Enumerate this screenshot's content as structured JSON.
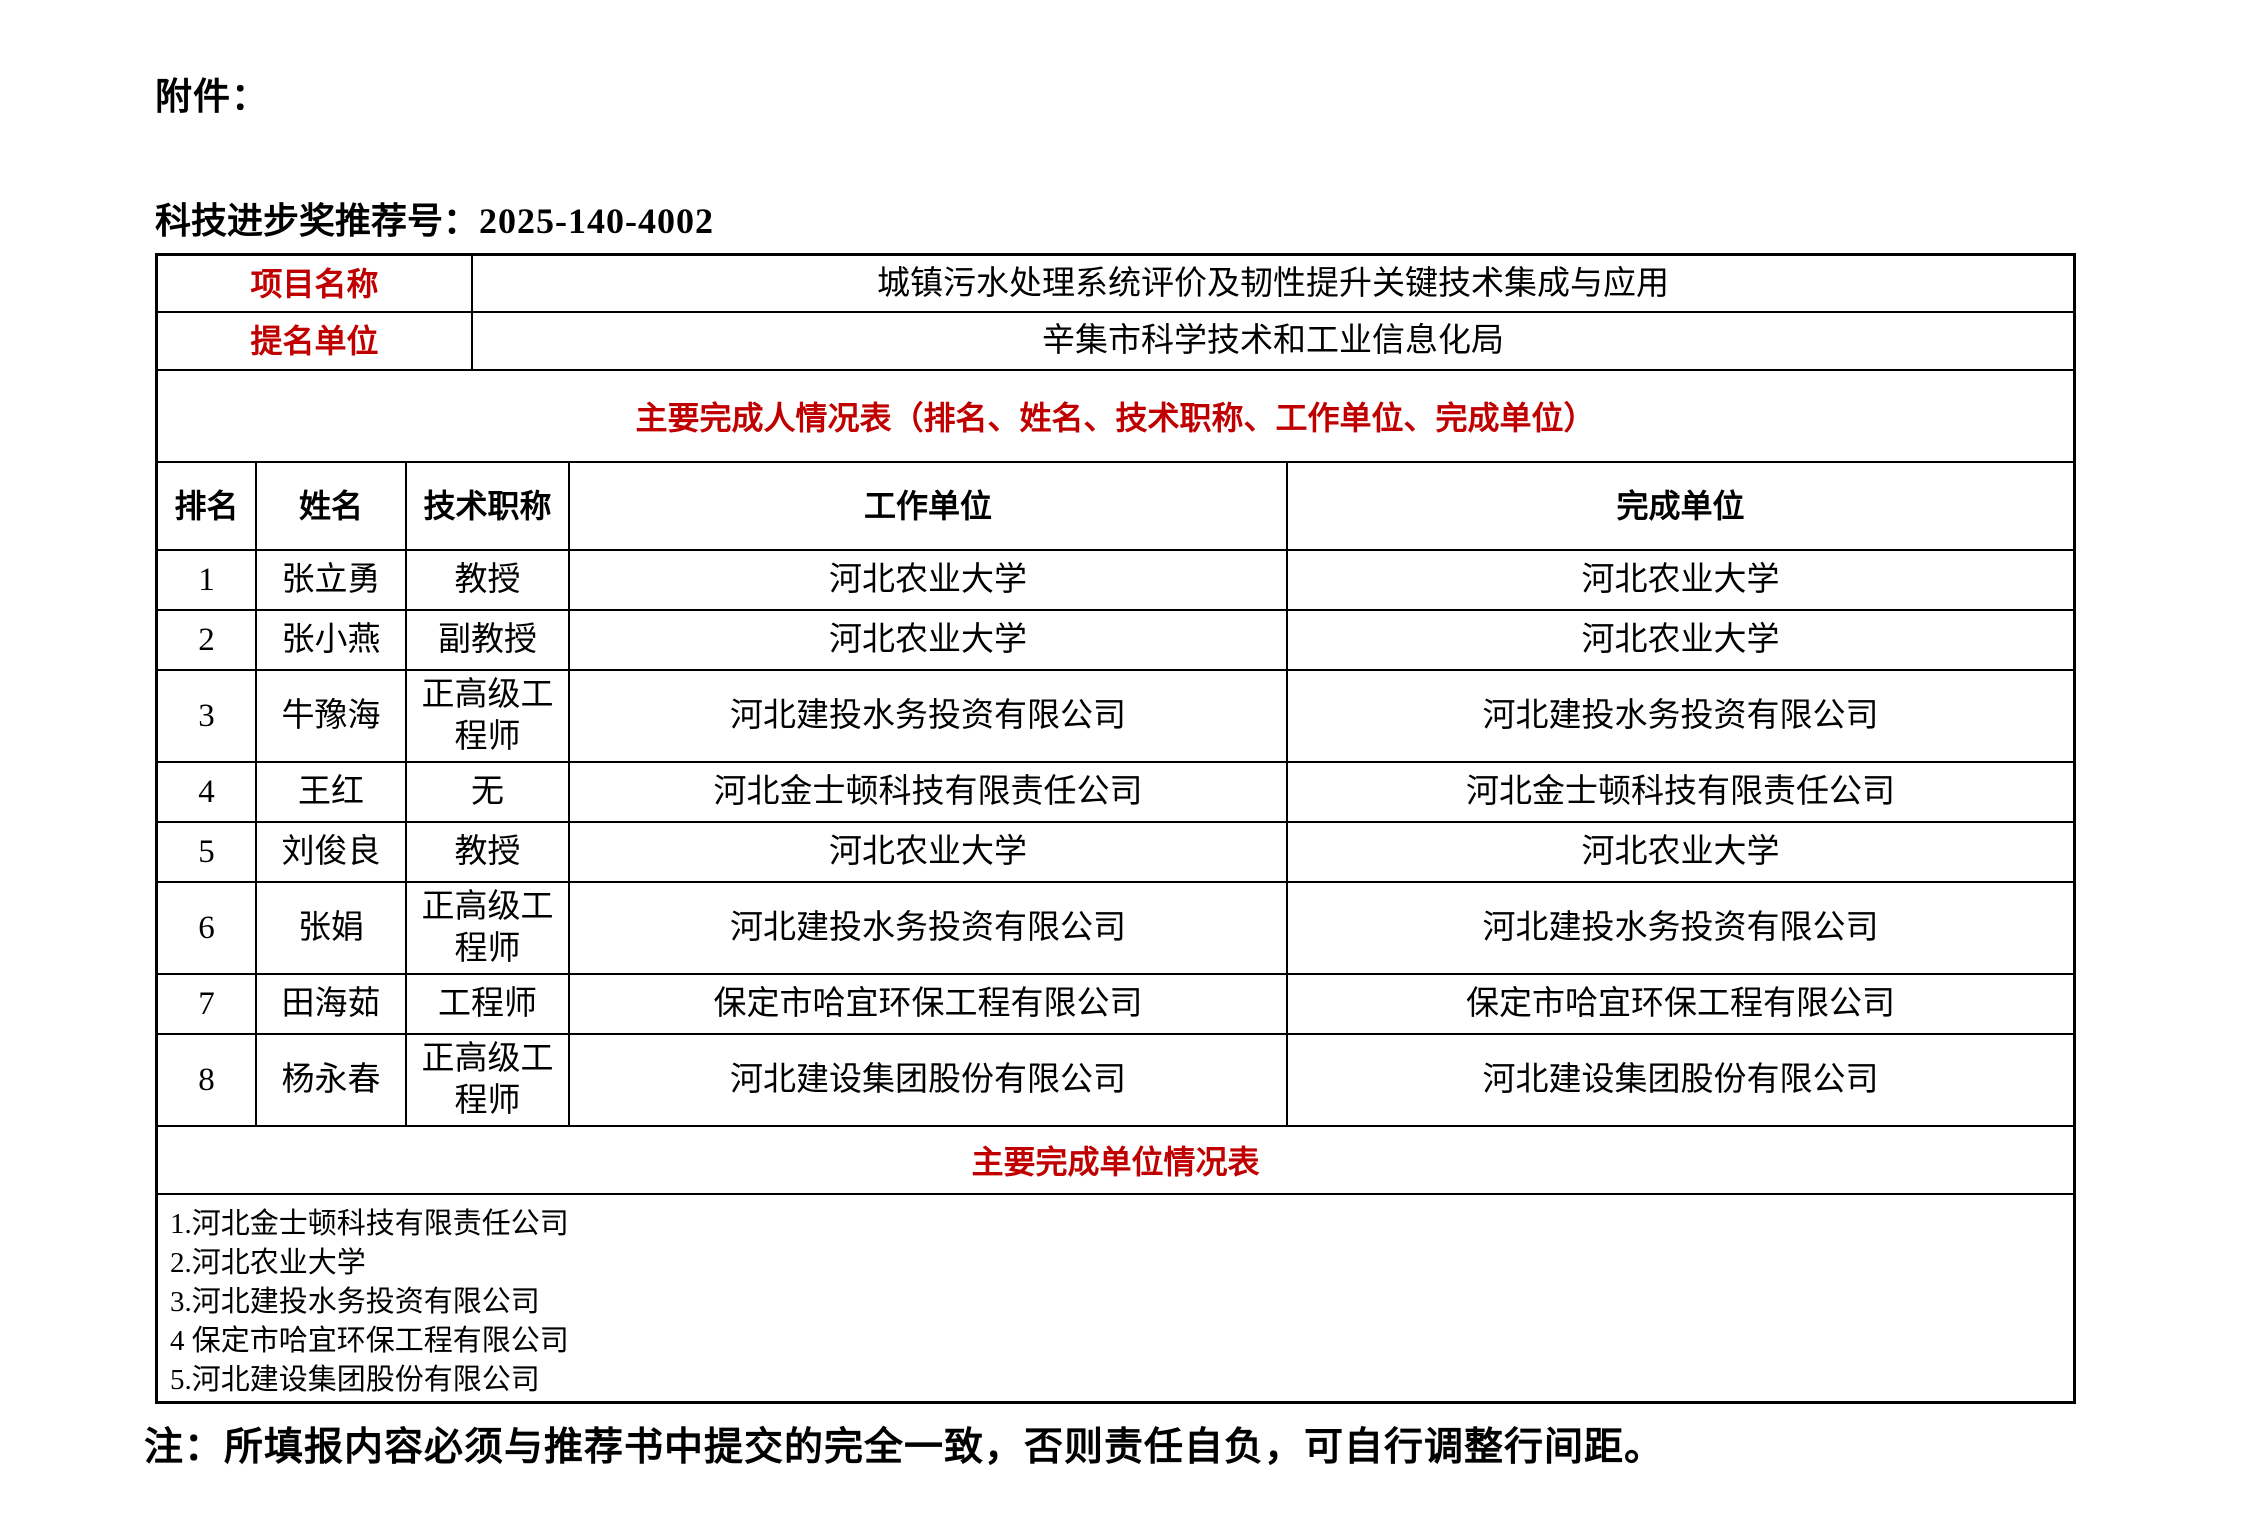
{
  "page": {
    "attachment_label": "附件：",
    "recommendation_label": "科技进步奖推荐号：",
    "recommendation_number": "2025-140-4002",
    "note": "注：所填报内容必须与推荐书中提交的完全一致，否则责任自负，可自行调整行间距。"
  },
  "colors": {
    "accent_red": "#C00000",
    "border_black": "#000000",
    "background": "#FFFFFF"
  },
  "project": {
    "name_label": "项目名称",
    "name_value": "城镇污水处理系统评价及韧性提升关键技术集成与应用",
    "nominator_label": "提名单位",
    "nominator_value": "辛集市科学技术和工业信息化局"
  },
  "contributors": {
    "section_title": "主要完成人情况表（排名、姓名、技术职称、工作单位、完成单位）",
    "columns": [
      "排名",
      "姓名",
      "技术职称",
      "工作单位",
      "完成单位"
    ],
    "rows": [
      {
        "rank": "1",
        "name": "张立勇",
        "title": "教授",
        "work_unit": "河北农业大学",
        "completion_unit": "河北农业大学"
      },
      {
        "rank": "2",
        "name": "张小燕",
        "title": "副教授",
        "work_unit": "河北农业大学",
        "completion_unit": "河北农业大学"
      },
      {
        "rank": "3",
        "name": "牛豫海",
        "title": "正高级工程师",
        "work_unit": "河北建投水务投资有限公司",
        "completion_unit": "河北建投水务投资有限公司"
      },
      {
        "rank": "4",
        "name": "王红",
        "title": "无",
        "work_unit": "河北金士顿科技有限责任公司",
        "completion_unit": "河北金士顿科技有限责任公司"
      },
      {
        "rank": "5",
        "name": "刘俊良",
        "title": "教授",
        "work_unit": "河北农业大学",
        "completion_unit": "河北农业大学"
      },
      {
        "rank": "6",
        "name": "张娟",
        "title": "正高级工程师",
        "work_unit": "河北建投水务投资有限公司",
        "completion_unit": "河北建投水务投资有限公司"
      },
      {
        "rank": "7",
        "name": "田海茹",
        "title": "工程师",
        "work_unit": "保定市哈宜环保工程有限公司",
        "completion_unit": "保定市哈宜环保工程有限公司"
      },
      {
        "rank": "8",
        "name": "杨永春",
        "title": "正高级工程师",
        "work_unit": "河北建设集团股份有限公司",
        "completion_unit": "河北建设集团股份有限公司"
      }
    ]
  },
  "completion_units": {
    "section_title": "主要完成单位情况表",
    "items": [
      "1.河北金士顿科技有限责任公司",
      "2.河北农业大学",
      "3.河北建投水务投资有限公司",
      "4 保定市哈宜环保工程有限公司",
      "5.河北建设集团股份有限公司"
    ]
  }
}
